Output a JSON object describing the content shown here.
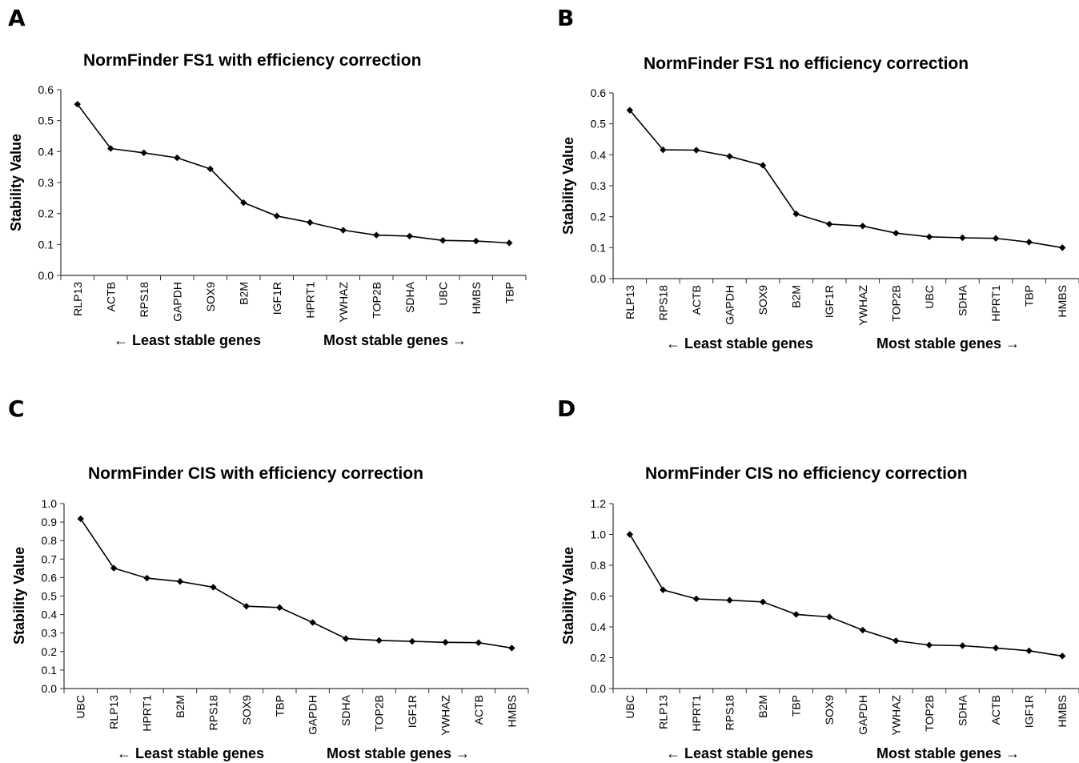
{
  "chart_data": [
    {
      "panel_label": "A",
      "type": "line",
      "title": "NormFinder FS1 with efficiency correction",
      "ylabel": "Stability Value",
      "ylim": [
        0,
        0.6
      ],
      "yticks": [
        "0.0",
        "0.1",
        "0.2",
        "0.3",
        "0.4",
        "0.5",
        "0.6"
      ],
      "categories": [
        "RLP13",
        "ACTB",
        "RPS18",
        "GAPDH",
        "SOX9",
        "B2M",
        "IGF1R",
        "HPRT1",
        "YWHAZ",
        "TOP2B",
        "SDHA",
        "UBC",
        "HMBS",
        "TBP"
      ],
      "values": [
        0.553,
        0.41,
        0.396,
        0.38,
        0.344,
        0.235,
        0.192,
        0.171,
        0.146,
        0.13,
        0.127,
        0.113,
        0.111,
        0.105
      ],
      "xlabel_left": "← Least stable genes",
      "xlabel_right": "Most stable genes →",
      "grid": false,
      "legend": "none",
      "color": "#000000"
    },
    {
      "panel_label": "B",
      "type": "line",
      "title": "NormFinder FS1 no efficiency correction",
      "ylabel": "Stability Value",
      "ylim": [
        0,
        0.6
      ],
      "yticks": [
        "0.0",
        "0.1",
        "0.2",
        "0.3",
        "0.4",
        "0.5",
        "0.6"
      ],
      "categories": [
        "RLP13",
        "RPS18",
        "ACTB",
        "GAPDH",
        "SOX9",
        "B2M",
        "IGF1R",
        "YWHAZ",
        "TOP2B",
        "UBC",
        "SDHA",
        "HPRT1",
        "TBP",
        "HMBS"
      ],
      "values": [
        0.544,
        0.416,
        0.415,
        0.395,
        0.366,
        0.209,
        0.176,
        0.17,
        0.147,
        0.135,
        0.132,
        0.13,
        0.118,
        0.1
      ],
      "xlabel_left": "← Least stable genes",
      "xlabel_right": "Most stable genes →",
      "grid": false,
      "legend": "none",
      "color": "#000000"
    },
    {
      "panel_label": "C",
      "type": "line",
      "title": "NormFinder CIS with efficiency correction",
      "ylabel": "Stability Value",
      "ylim": [
        0,
        1.0
      ],
      "yticks": [
        "0.0",
        "0.1",
        "0.2",
        "0.3",
        "0.4",
        "0.5",
        "0.6",
        "0.7",
        "0.8",
        "0.9",
        "1.0"
      ],
      "categories": [
        "UBC",
        "RLP13",
        "HPRT1",
        "B2M",
        "RPS18",
        "SOX9",
        "TBP",
        "GAPDH",
        "SDHA",
        "TOP2B",
        "IGF1R",
        "YWHAZ",
        "ACTB",
        "HMBS"
      ],
      "values": [
        0.918,
        0.651,
        0.597,
        0.579,
        0.548,
        0.445,
        0.438,
        0.357,
        0.27,
        0.26,
        0.255,
        0.25,
        0.248,
        0.219
      ],
      "xlabel_left": "← Least stable genes",
      "xlabel_right": "Most stable genes →",
      "grid": false,
      "legend": "none",
      "color": "#000000"
    },
    {
      "panel_label": "D",
      "type": "line",
      "title": "NormFinder CIS no efficiency correction",
      "ylabel": "Stability Value",
      "ylim": [
        0,
        1.2
      ],
      "yticks": [
        "0.0",
        "0.2",
        "0.4",
        "0.6",
        "0.8",
        "1.0",
        "1.2"
      ],
      "categories": [
        "UBC",
        "RLP13",
        "HPRT1",
        "RPS18",
        "B2M",
        "TBP",
        "SOX9",
        "GAPDH",
        "YWHAZ",
        "TOP2B",
        "SDHA",
        "ACTB",
        "IGF1R",
        "HMBS"
      ],
      "values": [
        1.0,
        0.64,
        0.582,
        0.573,
        0.562,
        0.481,
        0.465,
        0.379,
        0.31,
        0.282,
        0.278,
        0.263,
        0.245,
        0.211
      ],
      "xlabel_left": "← Least stable genes",
      "xlabel_right": "Most stable genes →",
      "grid": false,
      "legend": "none",
      "color": "#000000"
    }
  ]
}
